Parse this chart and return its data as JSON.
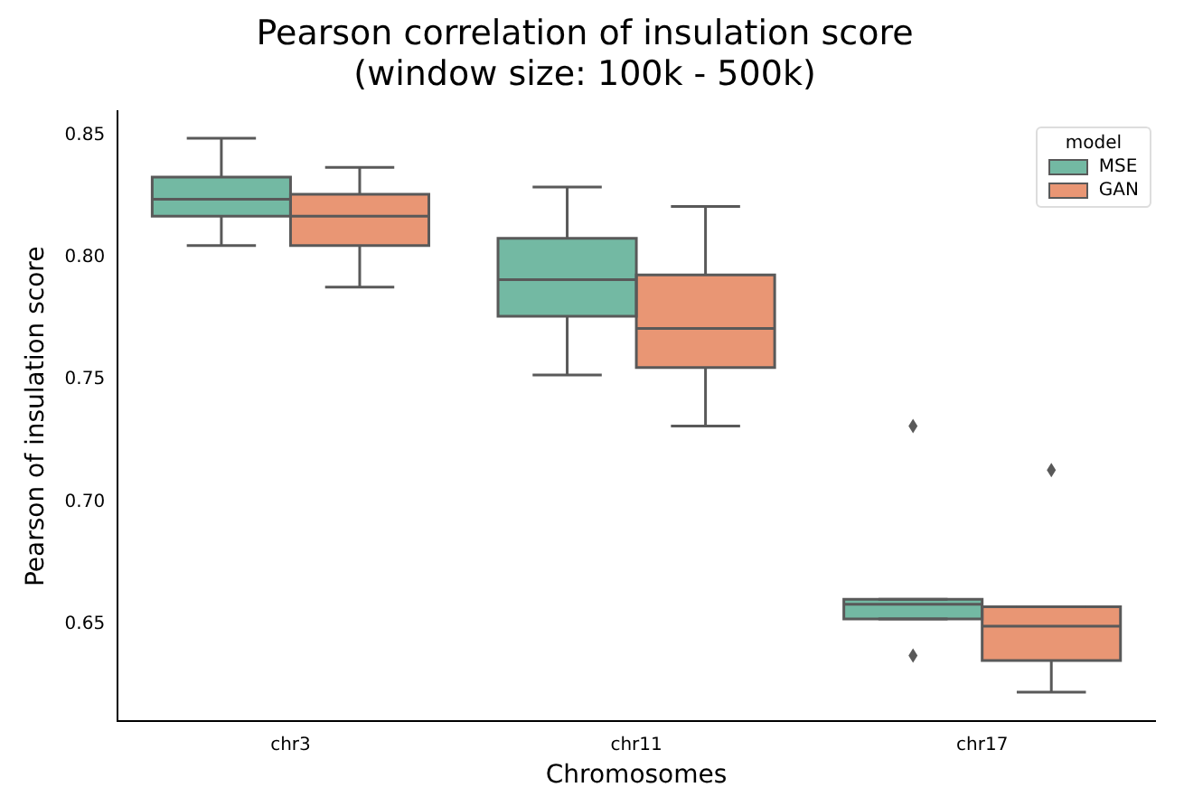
{
  "chart_data": {
    "type": "box",
    "title": "Pearson correlation of insulation score\n(window size: 100k - 500k)",
    "xlabel": "Chromosomes",
    "ylabel": "Pearson of insulation score",
    "legend_title": "model",
    "legend": "top right",
    "grid": false,
    "categories": [
      "chr3",
      "chr11",
      "chr17"
    ],
    "ylim": [
      0.61,
      0.86
    ],
    "yticks": [
      {
        "value": 0.65,
        "label": "0.65"
      },
      {
        "value": 0.7,
        "label": "0.70"
      },
      {
        "value": 0.75,
        "label": "0.75"
      },
      {
        "value": 0.8,
        "label": "0.80"
      },
      {
        "value": 0.85,
        "label": "0.85"
      }
    ],
    "series": [
      {
        "name": "MSE",
        "color": "#73b9a3",
        "boxes": [
          {
            "low": 0.805,
            "q1": 0.817,
            "median": 0.824,
            "q3": 0.833,
            "high": 0.849
          },
          {
            "low": 0.752,
            "q1": 0.776,
            "median": 0.791,
            "q3": 0.808,
            "high": 0.829
          },
          {
            "low": 0.652,
            "q1": 0.652,
            "median": 0.658,
            "q3": 0.66,
            "high": 0.66,
            "outliers": [
              0.731,
              0.637
            ]
          }
        ]
      },
      {
        "name": "GAN",
        "color": "#e99674",
        "boxes": [
          {
            "low": 0.788,
            "q1": 0.805,
            "median": 0.817,
            "q3": 0.826,
            "high": 0.837
          },
          {
            "low": 0.731,
            "q1": 0.755,
            "median": 0.771,
            "q3": 0.793,
            "high": 0.821
          },
          {
            "low": 0.622,
            "q1": 0.635,
            "median": 0.649,
            "q3": 0.657,
            "high": 0.657,
            "outliers": [
              0.713
            ]
          }
        ]
      }
    ]
  }
}
